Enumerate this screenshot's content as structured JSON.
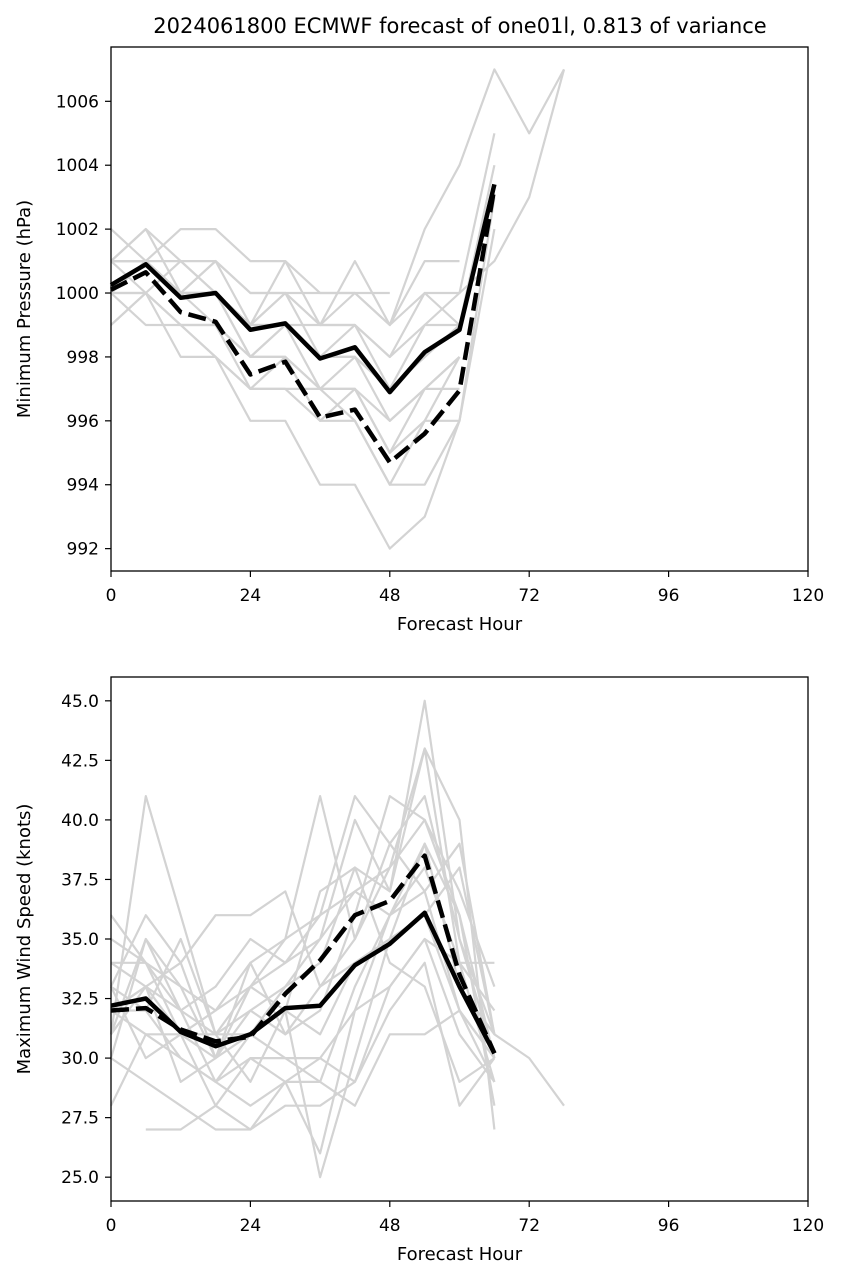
{
  "title": "2024061800 ECMWF forecast of one01l, 0.813 of variance",
  "colors": {
    "ensemble": "#d3d3d3",
    "mean": "#000000",
    "background": "#ffffff"
  },
  "chart_data": [
    {
      "type": "line",
      "xlabel": "Forecast Hour",
      "ylabel": "Minimum Pressure (hPa)",
      "xlim": [
        0,
        120
      ],
      "ylim": [
        991.3,
        1007.7
      ],
      "xticks": [
        0,
        24,
        48,
        72,
        96,
        120
      ],
      "yticks": [
        992,
        994,
        996,
        998,
        1000,
        1002,
        1004,
        1006
      ],
      "ytick_labels": [
        "992",
        "994",
        "996",
        "998",
        "1000",
        "1002",
        "1004",
        "1006"
      ],
      "grid": false,
      "series": [
        {
          "style": "solid",
          "x": [
            0,
            6,
            12,
            18,
            24,
            30,
            36,
            42,
            48,
            54,
            60,
            66
          ],
          "y": [
            1000.25,
            1000.9,
            999.85,
            1000.0,
            998.85,
            999.05,
            997.95,
            998.3,
            996.9,
            998.15,
            998.85,
            1003.4
          ]
        },
        {
          "style": "dashed",
          "x": [
            0,
            6,
            12,
            18,
            24,
            30,
            36,
            42,
            48,
            54,
            60,
            66
          ],
          "y": [
            1000.1,
            1000.65,
            999.4,
            999.1,
            997.45,
            997.85,
            996.1,
            996.35,
            994.7,
            995.6,
            996.95,
            1003.3
          ]
        }
      ],
      "ensemble": [
        {
          "x": [
            0,
            6,
            12,
            18,
            24,
            30,
            36,
            42,
            48,
            54,
            60,
            66
          ],
          "y": [
            1002,
            1001,
            1001,
            1000,
            999,
            999,
            998,
            998,
            997,
            998,
            999,
            1004
          ]
        },
        {
          "x": [
            0,
            6,
            12,
            18,
            24,
            30,
            36,
            42,
            48,
            54,
            60,
            66
          ],
          "y": [
            1001,
            1002,
            1001,
            1001,
            1000,
            1000,
            999,
            999,
            998,
            999,
            1000,
            1005
          ]
        },
        {
          "x": [
            0,
            6,
            12,
            18,
            24,
            30,
            36,
            42,
            48,
            54,
            60,
            66,
            72,
            78
          ],
          "y": [
            1000,
            1001,
            1002,
            1002,
            1001,
            1001,
            1000,
            1000,
            999,
            1002,
            1004,
            1007,
            1005,
            1007
          ]
        },
        {
          "x": [
            0,
            6,
            12,
            18,
            24,
            30,
            36,
            42,
            48,
            54,
            60,
            66,
            72,
            78
          ],
          "y": [
            1001,
            1001,
            1000,
            1000,
            999,
            999,
            999,
            999,
            998,
            1000,
            1000,
            1001,
            1003,
            1007
          ]
        },
        {
          "x": [
            0,
            6,
            12,
            18,
            24,
            30,
            36,
            42,
            48,
            54,
            60,
            66
          ],
          "y": [
            999,
            1000,
            998,
            998,
            996,
            996,
            994,
            994,
            992,
            993,
            996,
            1003
          ]
        },
        {
          "x": [
            0,
            6,
            12,
            18,
            24,
            30,
            36,
            42,
            48,
            54,
            60,
            66
          ],
          "y": [
            1000,
            1000,
            999,
            998,
            997,
            997,
            996,
            996,
            994,
            994,
            996,
            1002
          ]
        },
        {
          "x": [
            0,
            6,
            12,
            18,
            24,
            30,
            36,
            42,
            48,
            54,
            60
          ],
          "y": [
            1001,
            1001,
            1000,
            1000,
            998,
            999,
            997,
            998,
            996,
            997,
            998
          ]
        },
        {
          "x": [
            0,
            6,
            12,
            18,
            24,
            30,
            36,
            42,
            48,
            54,
            60
          ],
          "y": [
            1000,
            1001,
            1000,
            1001,
            1000,
            1000,
            999,
            1000,
            999,
            1001,
            1001
          ]
        },
        {
          "x": [
            0,
            6,
            12,
            18,
            24,
            30,
            36,
            42,
            48,
            54,
            60
          ],
          "y": [
            1001,
            1002,
            1000,
            1001,
            999,
            1001,
            999,
            1001,
            999,
            1000,
            999
          ]
        },
        {
          "x": [
            0,
            6,
            12,
            18,
            24,
            30,
            36,
            42,
            48,
            54,
            60
          ],
          "y": [
            999,
            1000,
            999,
            999,
            997,
            998,
            996,
            997,
            995,
            996,
            998
          ]
        },
        {
          "x": [
            0,
            6,
            12,
            18,
            24,
            30,
            36,
            42,
            48,
            54,
            60
          ],
          "y": [
            1000,
            1001,
            1000,
            999,
            998,
            998,
            997,
            997,
            996,
            997,
            997
          ]
        },
        {
          "x": [
            0,
            6,
            12,
            18,
            24,
            30,
            36,
            42,
            48,
            54,
            60
          ],
          "y": [
            1001,
            1000,
            1001,
            1000,
            999,
            1000,
            998,
            999,
            997,
            998,
            999
          ]
        },
        {
          "x": [
            0,
            6,
            12,
            18,
            24,
            30,
            36,
            42,
            48,
            54,
            60
          ],
          "y": [
            1000,
            1000,
            999,
            999,
            998,
            998,
            997,
            997,
            995,
            997,
            998
          ]
        },
        {
          "x": [
            0,
            6,
            12,
            18,
            24,
            30,
            36,
            42,
            48
          ],
          "y": [
            1000,
            1001,
            1000,
            1000,
            999,
            1000,
            1000,
            1000,
            1000
          ]
        },
        {
          "x": [
            0,
            6,
            12,
            18,
            24,
            30,
            36,
            42,
            48,
            54,
            60
          ],
          "y": [
            1000,
            999,
            999,
            998,
            997,
            997,
            997,
            996,
            994,
            996,
            996
          ]
        },
        {
          "x": [
            0,
            6,
            12,
            18,
            24,
            30,
            36,
            42,
            48,
            54,
            60
          ],
          "y": [
            1001,
            1001,
            1000,
            1000,
            998,
            999,
            998,
            998,
            997,
            999,
            999
          ]
        }
      ]
    },
    {
      "type": "line",
      "xlabel": "Forecast Hour",
      "ylabel": "Maximum Wind Speed (knots)",
      "xlim": [
        0,
        120
      ],
      "ylim": [
        24.0,
        46.0
      ],
      "xticks": [
        0,
        24,
        48,
        72,
        96,
        120
      ],
      "yticks": [
        25.0,
        27.5,
        30.0,
        32.5,
        35.0,
        37.5,
        40.0,
        42.5,
        45.0
      ],
      "ytick_labels": [
        "25.0",
        "27.5",
        "30.0",
        "32.5",
        "35.0",
        "37.5",
        "40.0",
        "42.5",
        "45.0"
      ],
      "grid": false,
      "series": [
        {
          "style": "solid",
          "x": [
            0,
            6,
            12,
            18,
            24,
            30,
            36,
            42,
            48,
            54,
            60,
            66
          ],
          "y": [
            32.2,
            32.5,
            31.1,
            30.5,
            31.0,
            32.1,
            32.2,
            33.9,
            34.8,
            36.1,
            33.0,
            30.2
          ]
        },
        {
          "style": "dashed",
          "x": [
            0,
            6,
            12,
            18,
            24,
            30,
            36,
            42,
            48,
            54,
            60,
            66
          ],
          "y": [
            32.0,
            32.1,
            31.2,
            30.7,
            30.9,
            32.7,
            34.1,
            36.0,
            36.6,
            38.5,
            33.5,
            30.2
          ]
        }
      ],
      "ensemble": [
        {
          "x": [
            0,
            6,
            12,
            18,
            24,
            30,
            36,
            42,
            48,
            54,
            60,
            66
          ],
          "y": [
            36,
            34,
            33,
            32,
            33,
            34,
            35,
            37,
            38,
            40,
            37,
            33
          ]
        },
        {
          "x": [
            0,
            6,
            12,
            18,
            24,
            30,
            36,
            42,
            48,
            54,
            60,
            66
          ],
          "y": [
            28,
            31,
            30,
            29,
            28,
            29,
            30,
            32,
            33,
            35,
            31,
            29
          ]
        },
        {
          "x": [
            0,
            6,
            12,
            18,
            24,
            30,
            36,
            42,
            48,
            54,
            60,
            66
          ],
          "y": [
            31,
            41,
            36,
            31,
            29,
            32,
            31,
            34,
            35,
            36,
            32,
            30
          ]
        },
        {
          "x": [
            0,
            6,
            12,
            18,
            24,
            30,
            36,
            42,
            48,
            54,
            60,
            66
          ],
          "y": [
            33,
            36,
            34,
            30,
            32,
            33,
            34,
            38,
            37,
            45,
            35,
            31
          ]
        },
        {
          "x": [
            0,
            6,
            12,
            18,
            24,
            30,
            36,
            42,
            48,
            54,
            60,
            66
          ],
          "y": [
            30,
            35,
            32,
            29,
            31,
            30,
            29,
            33,
            36,
            38,
            34,
            32
          ]
        },
        {
          "x": [
            0,
            6,
            12,
            18,
            24,
            30,
            36,
            42,
            48,
            54,
            60,
            66
          ],
          "y": [
            34,
            33,
            31,
            30,
            34,
            31,
            32,
            36,
            41,
            40,
            36,
            28
          ]
        },
        {
          "x": [
            0,
            6,
            12,
            18,
            24,
            30,
            36,
            42,
            48,
            54,
            60,
            66
          ],
          "y": [
            32,
            32,
            35,
            31,
            33,
            35,
            41,
            35,
            38,
            43,
            40,
            27
          ]
        },
        {
          "x": [
            0,
            6,
            12,
            18,
            24,
            30,
            36,
            42,
            48,
            54,
            60,
            66
          ],
          "y": [
            33,
            30,
            31,
            28,
            30,
            29,
            26,
            32,
            36,
            39,
            36,
            30
          ]
        },
        {
          "x": [
            0,
            6,
            12,
            18,
            24,
            30,
            36,
            42,
            48,
            54,
            60,
            66
          ],
          "y": [
            31,
            33,
            29,
            30,
            31,
            33,
            35,
            40,
            37,
            43,
            34,
            29
          ]
        },
        {
          "x": [
            0,
            6,
            12,
            18,
            24,
            30,
            36,
            42,
            48,
            54,
            60,
            66
          ],
          "y": [
            34,
            34,
            32,
            31,
            32,
            31,
            33,
            34,
            35,
            36,
            38,
            31
          ]
        },
        {
          "x": [
            0,
            6,
            12,
            18,
            24,
            30,
            36,
            42,
            48,
            54,
            60,
            66
          ],
          "y": [
            30,
            29,
            28,
            27,
            27,
            28,
            28,
            29,
            32,
            34,
            28,
            30
          ]
        },
        {
          "x": [
            0,
            6,
            12,
            18,
            24,
            30,
            36,
            42,
            48,
            54,
            60,
            66
          ],
          "y": [
            32,
            33,
            32,
            33,
            35,
            34,
            36,
            41,
            39,
            41,
            35,
            30
          ]
        },
        {
          "x": [
            0,
            6,
            12,
            18,
            24,
            30,
            36,
            42,
            48,
            54,
            60,
            66
          ],
          "y": [
            35,
            34,
            31,
            31,
            31,
            32,
            37,
            38,
            34,
            33,
            29,
            30
          ]
        },
        {
          "x": [
            6,
            12,
            18,
            24,
            30,
            36,
            42,
            48,
            54,
            60,
            66
          ],
          "y": [
            27,
            27,
            28,
            27,
            29,
            29,
            28,
            31,
            31,
            32,
            29
          ]
        },
        {
          "x": [
            0,
            6,
            12,
            18,
            24,
            30,
            36,
            42,
            48,
            54,
            60,
            66,
            72,
            78
          ],
          "y": [
            32,
            33,
            34,
            36,
            36,
            37,
            33,
            35,
            39,
            37,
            39,
            31,
            30,
            28
          ]
        },
        {
          "x": [
            0,
            6,
            12,
            18,
            24,
            30,
            36,
            42,
            48,
            54,
            60,
            66
          ],
          "y": [
            33,
            32,
            30,
            29,
            30,
            30,
            30,
            29,
            33,
            35,
            34,
            34
          ]
        },
        {
          "x": [
            0,
            6,
            12,
            18,
            24,
            30,
            36,
            42,
            48,
            54,
            60,
            66
          ],
          "y": [
            31,
            35,
            33,
            30,
            33,
            32,
            25,
            30,
            35,
            39,
            33,
            31
          ]
        },
        {
          "x": [
            0,
            6,
            12,
            18,
            24,
            30,
            36,
            42,
            48,
            54,
            60,
            66
          ],
          "y": [
            32,
            31,
            31,
            32,
            34,
            35,
            36,
            37,
            36,
            37,
            32,
            30
          ]
        }
      ]
    }
  ]
}
